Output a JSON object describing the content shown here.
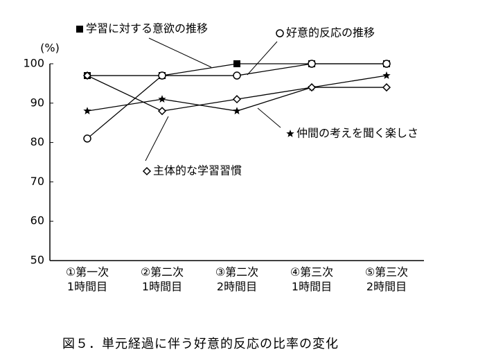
{
  "chart_data": {
    "type": "line",
    "y_label": "(%)",
    "caption": "図５．単元経過に伴う好意的反応の比率の変化",
    "categories": [
      "①第一次\n1時間目",
      "②第二次\n1時間目",
      "③第二次\n2時間目",
      "④第三次\n1時間目",
      "⑤第三次\n2時間目"
    ],
    "ylim": [
      50,
      100
    ],
    "yticks": [
      50,
      60,
      70,
      80,
      90,
      100
    ],
    "series": [
      {
        "name": "学習に対する意欲の推移",
        "color": "#000000",
        "marker": "square",
        "values": [
          97,
          97,
          100,
          100,
          100
        ]
      },
      {
        "name": "好意的反応の推移",
        "color": "#000000",
        "marker": "circle",
        "values": [
          81,
          97,
          97,
          100,
          100
        ]
      },
      {
        "name": "仲間の考えを聞く楽しさ",
        "color": "#000000",
        "marker": "star",
        "values": [
          88,
          91,
          88,
          94,
          97
        ]
      },
      {
        "name": "主体的な学習習慣",
        "color": "#000000",
        "marker": "diamond",
        "values": [
          97,
          88,
          91,
          94,
          94
        ]
      }
    ]
  }
}
